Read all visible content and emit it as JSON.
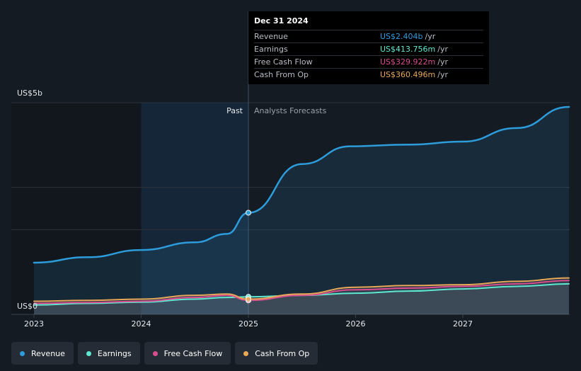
{
  "tooltip": {
    "date": "Dec 31 2024",
    "rows": [
      {
        "name": "Revenue",
        "value": "US$2.404b",
        "unit": "/yr",
        "color": "#2d9cdb"
      },
      {
        "name": "Earnings",
        "value": "US$413.756m",
        "unit": "/yr",
        "color": "#5ee8cf"
      },
      {
        "name": "Free Cash Flow",
        "value": "US$329.922m",
        "unit": "/yr",
        "color": "#d94e8f"
      },
      {
        "name": "Cash From Op",
        "value": "US$360.496m",
        "unit": "/yr",
        "color": "#e9a857"
      }
    ]
  },
  "labels": {
    "past": "Past",
    "forecast": "Analysts Forecasts"
  },
  "legend": [
    {
      "name": "Revenue",
      "color": "#2d9cdb"
    },
    {
      "name": "Earnings",
      "color": "#5ee8cf"
    },
    {
      "name": "Free Cash Flow",
      "color": "#d94e8f"
    },
    {
      "name": "Cash From Op",
      "color": "#e9a857"
    }
  ],
  "chart_data": {
    "type": "line",
    "y_unit_labels": [
      "US$5b",
      "US$0"
    ],
    "ylim": [
      0,
      5.0
    ],
    "xlim": [
      2023.0,
      2027.99
    ],
    "x_ticks": [
      2023,
      2024,
      2025,
      2026,
      2027
    ],
    "x_tick_labels": [
      "2023",
      "2024",
      "2025",
      "2026",
      "2027"
    ],
    "past_end": 2025.0,
    "grid": true,
    "series": [
      {
        "name": "Revenue",
        "color": "#2d9cdb",
        "x": [
          2023.0,
          2023.5,
          2024.0,
          2024.5,
          2024.8,
          2025.0,
          2025.5,
          2025.95,
          2026.5,
          2027.0,
          2027.5,
          2027.99
        ],
        "y": [
          1.22,
          1.35,
          1.52,
          1.7,
          1.9,
          2.4,
          3.55,
          3.97,
          4.01,
          4.08,
          4.4,
          4.9
        ]
      },
      {
        "name": "Earnings",
        "color": "#5ee8cf",
        "x": [
          2023.0,
          2023.5,
          2024.0,
          2024.5,
          2024.8,
          2025.0,
          2025.5,
          2026.0,
          2026.5,
          2027.0,
          2027.5,
          2027.99
        ],
        "y": [
          0.22,
          0.26,
          0.29,
          0.36,
          0.4,
          0.414,
          0.45,
          0.5,
          0.55,
          0.6,
          0.66,
          0.72
        ]
      },
      {
        "name": "Free Cash Flow",
        "color": "#d94e8f",
        "x": [
          2023.0,
          2023.5,
          2024.0,
          2024.5,
          2024.8,
          2025.0,
          2025.5,
          2026.0,
          2026.5,
          2027.0,
          2027.5,
          2027.99
        ],
        "y": [
          0.26,
          0.28,
          0.31,
          0.4,
          0.45,
          0.33,
          0.45,
          0.58,
          0.62,
          0.66,
          0.72,
          0.8
        ]
      },
      {
        "name": "Cash From Op",
        "color": "#e9a857",
        "x": [
          2023.0,
          2023.5,
          2024.0,
          2024.5,
          2024.8,
          2025.0,
          2025.5,
          2026.0,
          2026.5,
          2027.0,
          2027.5,
          2027.99
        ],
        "y": [
          0.31,
          0.33,
          0.36,
          0.45,
          0.48,
          0.36,
          0.48,
          0.64,
          0.68,
          0.7,
          0.78,
          0.86
        ]
      }
    ]
  }
}
